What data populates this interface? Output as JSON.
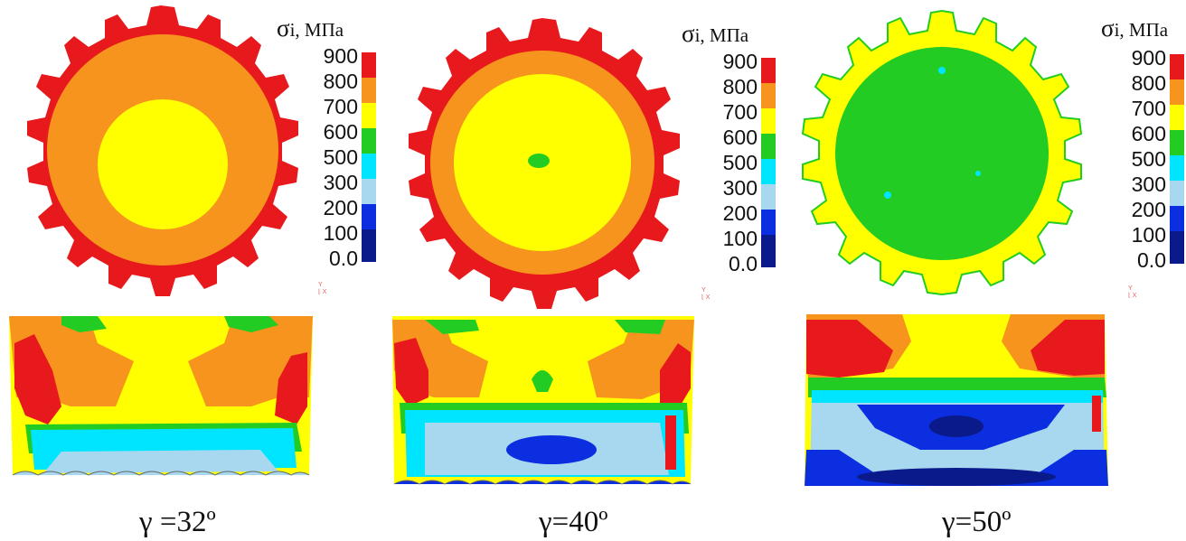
{
  "legend": {
    "symbol": "σ",
    "title_rest": "i, МПа",
    "levels": [
      {
        "label": "900",
        "color": "#e8191c"
      },
      {
        "label": "800",
        "color": "#f7941d"
      },
      {
        "label": "700",
        "color": "#ffff00"
      },
      {
        "label": "600",
        "color": "#22cc22"
      },
      {
        "label": "500",
        "color": "#00e5ff"
      },
      {
        "label": "300",
        "color": "#a8d8f0"
      },
      {
        "label": "200",
        "color": "#0a2ee0"
      },
      {
        "label": "100",
        "color": "#0a1a8a"
      },
      {
        "label": "0.0",
        "color": "#ffffff"
      }
    ]
  },
  "panels": [
    {
      "caption": "γ =32º",
      "axis_y": "Y",
      "axis_x": "X"
    },
    {
      "caption": "γ=40º",
      "axis_y": "Y",
      "axis_x": "X"
    },
    {
      "caption": "γ=50º",
      "axis_y": "Y",
      "axis_x": "X"
    }
  ],
  "colors": {
    "red": "#e8191c",
    "orange": "#f7941d",
    "yellow": "#ffff00",
    "green": "#22cc22",
    "cyan": "#00e5ff",
    "light_blue": "#a8d8f0",
    "blue": "#0a2ee0",
    "dark_blue": "#0a1a8a"
  }
}
